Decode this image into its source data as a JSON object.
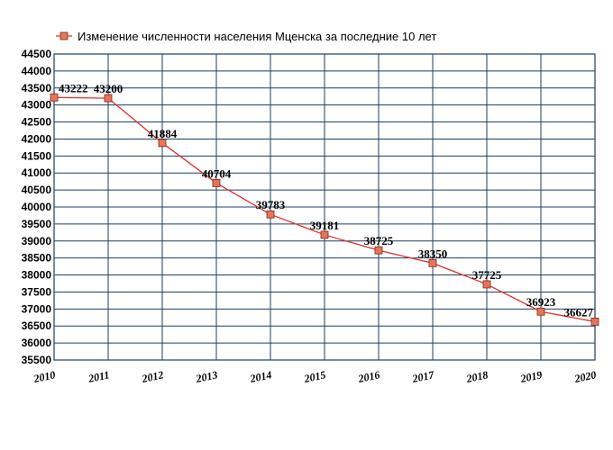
{
  "chart_data": {
    "type": "line",
    "legend": {
      "label": "Изменение численности населения Мценска за последние 10 лет",
      "placement": "top-left"
    },
    "x": [
      "2010",
      "2011",
      "2012",
      "2013",
      "2014",
      "2015",
      "2016",
      "2017",
      "2018",
      "2019",
      "2020"
    ],
    "series": [
      {
        "name": "Изменение численности населения Мценска за последние 10 лет",
        "values": [
          43222,
          43200,
          41884,
          40704,
          39783,
          39181,
          38725,
          38350,
          37725,
          36923,
          36627
        ],
        "color": "#e8735a",
        "line_color": "#e0302a",
        "marker": "square"
      }
    ],
    "ylim": [
      35500,
      44500
    ],
    "y_ticks": [
      35500,
      36000,
      36500,
      37000,
      37500,
      38000,
      38500,
      39000,
      39500,
      40000,
      40500,
      41000,
      41500,
      42000,
      42500,
      43000,
      43500,
      44000,
      44500
    ],
    "grid": true,
    "grid_color": "#1f3f5f"
  }
}
